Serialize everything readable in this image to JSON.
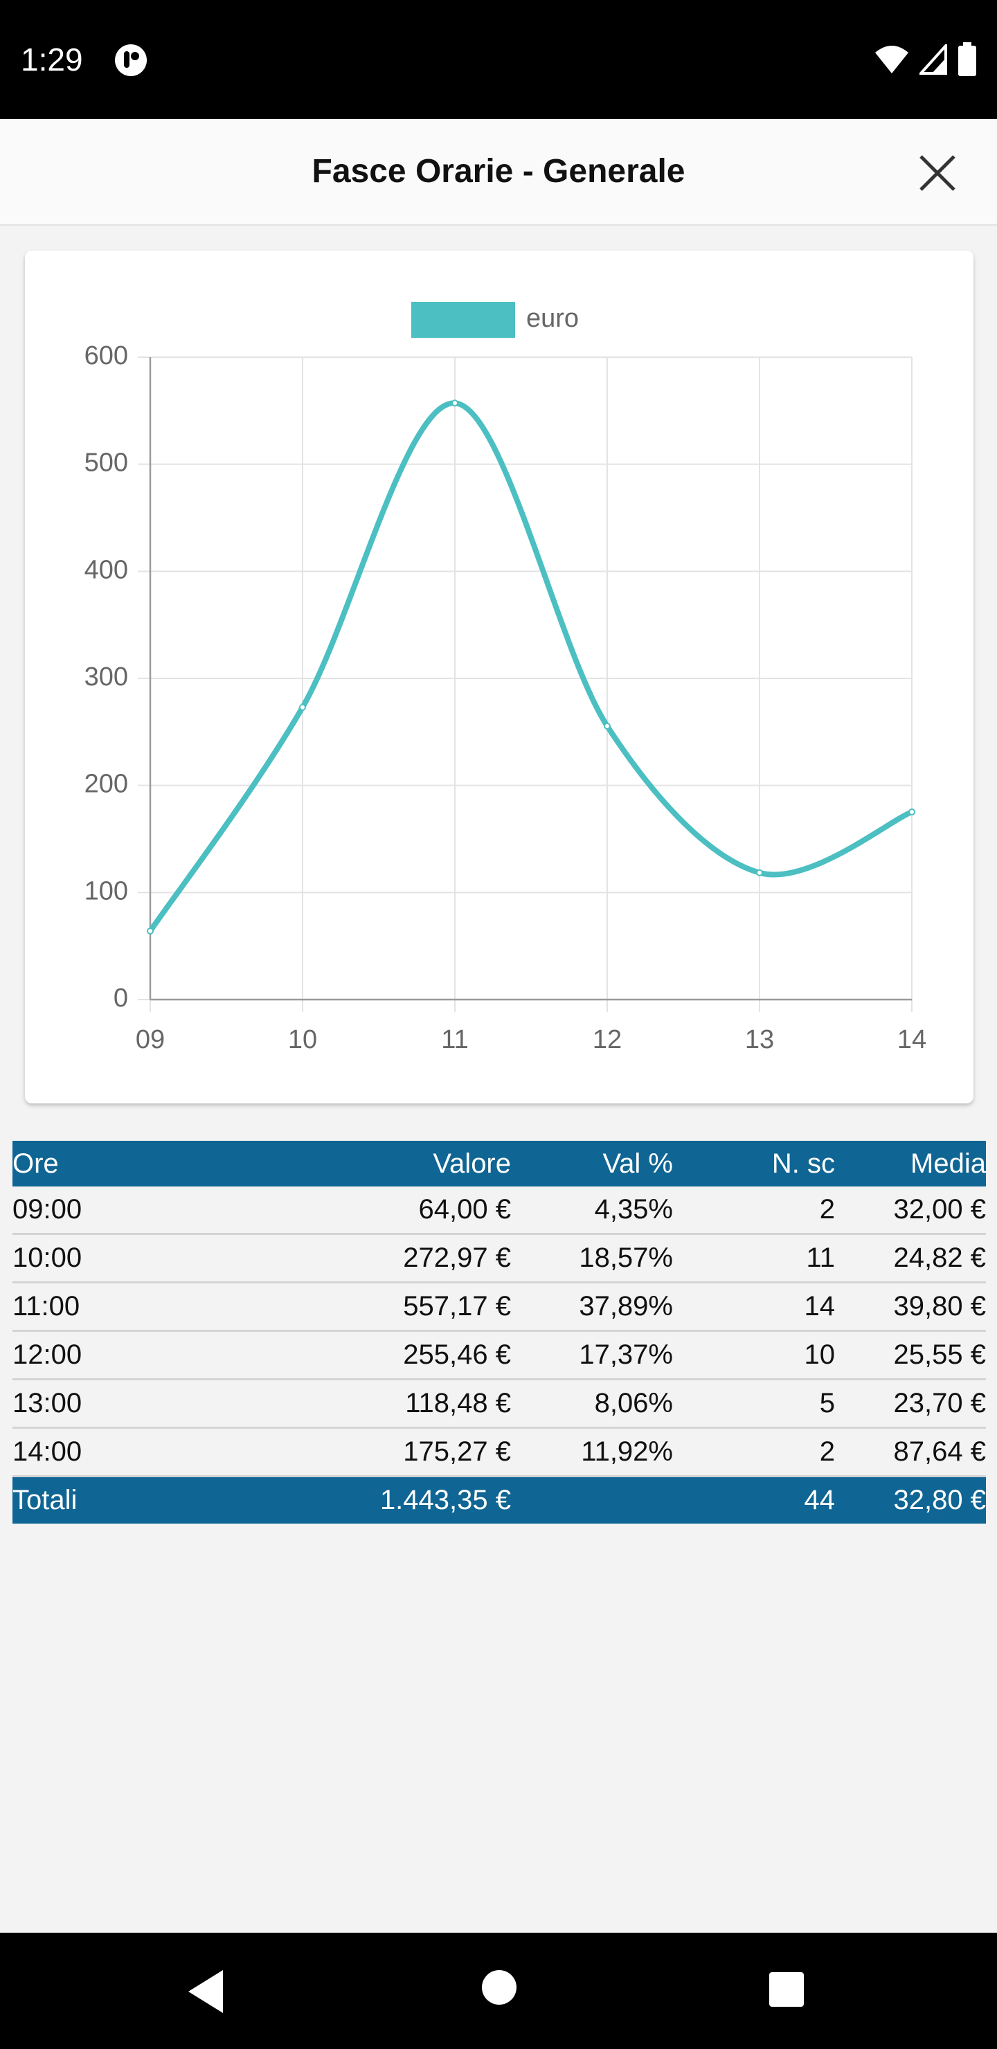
{
  "status_bar": {
    "time": "1:29"
  },
  "header": {
    "title": "Fasce Orarie - Generale"
  },
  "chart_data": {
    "type": "line",
    "categories": [
      "09",
      "10",
      "11",
      "12",
      "13",
      "14"
    ],
    "series": [
      {
        "name": "euro",
        "values": [
          64.0,
          272.97,
          557.17,
          255.46,
          118.48,
          175.27
        ],
        "color": "#4bbfc2"
      }
    ],
    "ylim": [
      0,
      600
    ],
    "yticks": [
      0,
      100,
      200,
      300,
      400,
      500,
      600
    ],
    "grid": true,
    "legend": "top-center"
  },
  "table": {
    "headers": {
      "ore": "Ore",
      "valore": "Valore",
      "perc": "Val %",
      "nsc": "N. sc",
      "media": "Media"
    },
    "rows": [
      {
        "ore": "09:00",
        "valore": "64,00 €",
        "perc": "4,35%",
        "nsc": "2",
        "media": "32,00 €"
      },
      {
        "ore": "10:00",
        "valore": "272,97 €",
        "perc": "18,57%",
        "nsc": "11",
        "media": "24,82 €"
      },
      {
        "ore": "11:00",
        "valore": "557,17 €",
        "perc": "37,89%",
        "nsc": "14",
        "media": "39,80 €"
      },
      {
        "ore": "12:00",
        "valore": "255,46 €",
        "perc": "17,37%",
        "nsc": "10",
        "media": "25,55 €"
      },
      {
        "ore": "13:00",
        "valore": "118,48 €",
        "perc": "8,06%",
        "nsc": "5",
        "media": "23,70 €"
      },
      {
        "ore": "14:00",
        "valore": "175,27 €",
        "perc": "11,92%",
        "nsc": "2",
        "media": "87,64 €"
      }
    ],
    "total": {
      "label": "Totali",
      "valore": "1.443,35 €",
      "perc": "",
      "nsc": "44",
      "media": "32,80 €"
    }
  },
  "colors": {
    "header_bg": "#0f6593",
    "line": "#4bbfc2"
  },
  "icons": [
    "data-usage-icon",
    "wifi-icon",
    "signal-icon",
    "battery-icon",
    "close-icon",
    "back-icon",
    "home-icon",
    "recents-icon"
  ]
}
